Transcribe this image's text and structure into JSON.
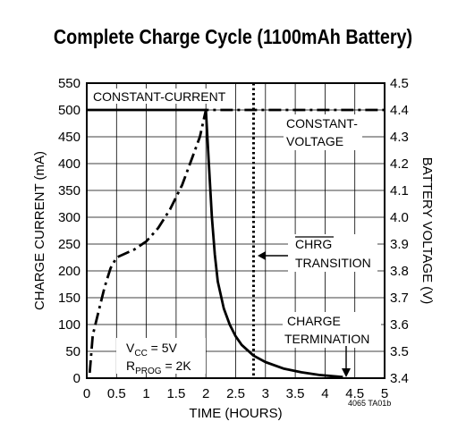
{
  "chart_data": {
    "type": "line",
    "title": "Complete Charge Cycle (1100mAh Battery)",
    "xlabel": "TIME (HOURS)",
    "ylabel_left": "CHARGE CURRENT (mA)",
    "ylabel_right": "BATTERY VOLTAGE (V)",
    "xlim": [
      0,
      5
    ],
    "ylim_left": [
      0,
      550
    ],
    "ylim_right": [
      3.4,
      4.5
    ],
    "x_ticks": [
      "0",
      "0.5",
      "1",
      "1.5",
      "2",
      "2.5",
      "3",
      "3.5",
      "4",
      "4.5",
      "5"
    ],
    "y_ticks_left": [
      "0",
      "50",
      "100",
      "150",
      "200",
      "250",
      "300",
      "350",
      "400",
      "450",
      "500",
      "550"
    ],
    "y_ticks_right": [
      "3.4",
      "3.5",
      "3.6",
      "3.7",
      "3.8",
      "3.9",
      "4.0",
      "4.1",
      "4.2",
      "4.3",
      "4.4",
      "4.5"
    ],
    "grid": true,
    "series": [
      {
        "axis": "left",
        "style": "solid",
        "x": [
          0,
          2,
          2.05,
          2.1,
          2.15,
          2.2,
          2.3,
          2.4,
          2.5,
          2.6,
          2.8,
          3.0,
          3.3,
          3.6,
          3.9,
          4.2,
          4.3
        ],
        "y": [
          500,
          500,
          400,
          300,
          230,
          180,
          130,
          100,
          78,
          62,
          42,
          30,
          18,
          11,
          6,
          3,
          2
        ]
      },
      {
        "axis": "right",
        "style": "dash-dot",
        "x": [
          0.05,
          0.1,
          0.2,
          0.3,
          0.4,
          0.5,
          0.6,
          0.8,
          1.0,
          1.2,
          1.4,
          1.6,
          1.8,
          1.9,
          2.0,
          2.5,
          3.0,
          4.0,
          5.0
        ],
        "y": [
          3.42,
          3.56,
          3.65,
          3.74,
          3.81,
          3.85,
          3.86,
          3.88,
          3.91,
          3.96,
          4.03,
          4.12,
          4.24,
          4.3,
          4.4,
          4.4,
          4.4,
          4.4,
          4.4
        ]
      }
    ],
    "reference_lines": [
      {
        "orientation": "vertical",
        "style": "dotted",
        "x": 2.8
      }
    ],
    "annotations": {
      "constant_current": "CONSTANT-CURRENT",
      "constant_voltage_1": "CONSTANT-",
      "constant_voltage_2": "VOLTAGE",
      "chrg": "CHRG",
      "transition": "TRANSITION",
      "charge": "CHARGE",
      "termination": "TERMINATION",
      "vcc_main": "V",
      "vcc_sub": "CC",
      "vcc_value": " = 5V",
      "rprog_main": "R",
      "rprog_sub": "PROG",
      "rprog_value": " = 2K"
    },
    "figure_id": "4065 TA01b"
  }
}
